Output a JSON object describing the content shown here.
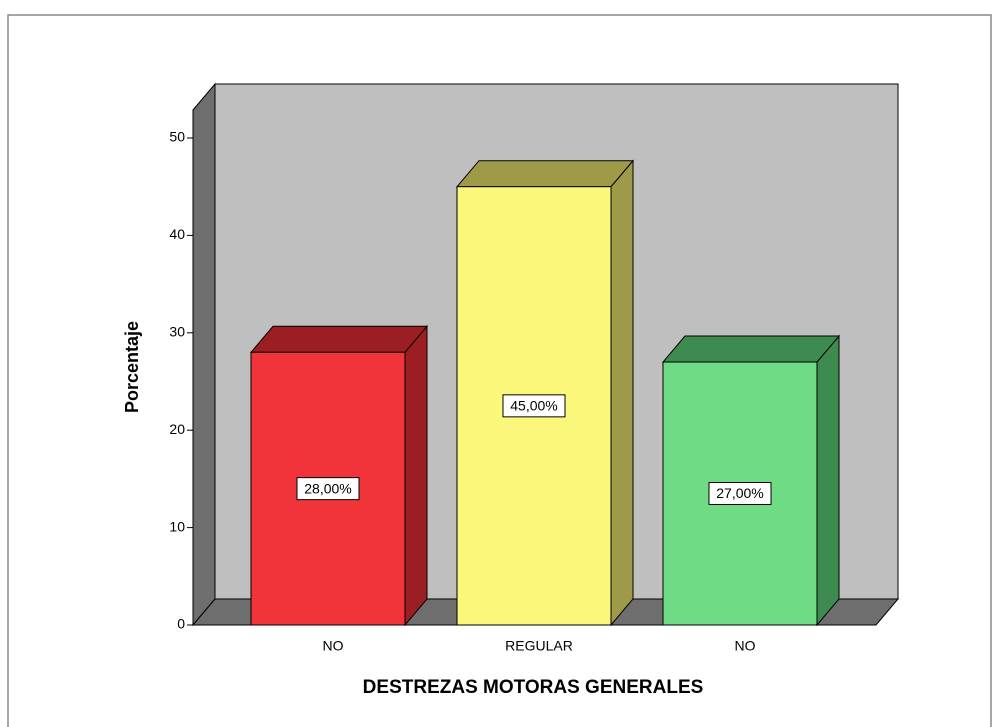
{
  "chart_data": {
    "type": "bar3d",
    "x_label": "DESTREZAS MOTORAS GENERALES",
    "y_label": "Porcentaje",
    "categories": [
      "NO",
      "REGULAR",
      "NO"
    ],
    "values": [
      28,
      45,
      27
    ],
    "value_labels": [
      "28,00%",
      "45,00%",
      "27,00%"
    ],
    "colors": [
      "#f0343a",
      "#fbf77a",
      "#6fdc85"
    ],
    "side_colors": [
      "#9b1f22",
      "#9e9a48",
      "#3d8b50"
    ],
    "ylim": [
      0,
      50
    ],
    "yticks": [
      0,
      10,
      20,
      30,
      40,
      50
    ]
  }
}
